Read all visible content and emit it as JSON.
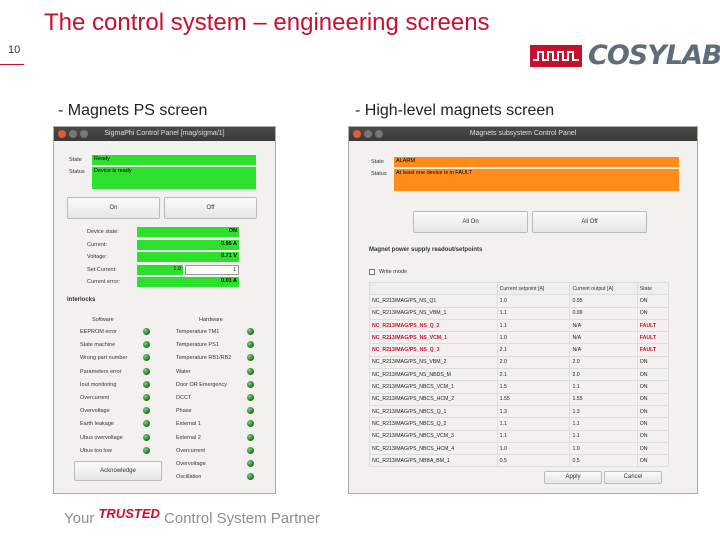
{
  "slide": {
    "number": "10",
    "title": "The control system – engineering screens",
    "logo_text": "COSYLAB",
    "footer_pre": "Your ",
    "footer_trusted": "TRUSTED",
    "footer_post": " Control System Partner"
  },
  "left": {
    "subtitle": "- Magnets PS screen",
    "window_title": "SigmaPhi Control Panel [mag/sigma/1]",
    "state_label": "State",
    "state_value": "Ready",
    "status_label": "Status",
    "status_value": "Device is ready",
    "on_label": "On",
    "off_label": "Off",
    "params": [
      {
        "label": "Device state:",
        "value": "ON"
      },
      {
        "label": "Current:",
        "value": "0.95 A"
      },
      {
        "label": "Voltage:",
        "value": "0.71 V"
      },
      {
        "label": "Set Current:",
        "value": "1"
      },
      {
        "label": "Current error:",
        "value": "0.01 A"
      }
    ],
    "set_current_spin": "1.0",
    "interlocks_label": "Interlocks",
    "software_label": "Software",
    "hardware_label": "Hardware",
    "software": [
      "EEPROM error",
      "State machine",
      "Wrong part number",
      "Parameters error",
      "Iout monitoring",
      "Overcurrent",
      "Overvoltage",
      "Earth leakage",
      "Ubus overvoltage",
      "Ubus too low"
    ],
    "hardware": [
      "Temperature TM1",
      "Temperature PS1",
      "Temperature RB1/RB2",
      "Water",
      "Door OR Emergency",
      "DCCT",
      "Phase",
      "External 1",
      "External 2",
      "Overcurrent",
      "Overvoltage",
      "Oscillation"
    ],
    "acknowledge_label": "Acknowledge"
  },
  "right": {
    "subtitle": "- High-level magnets screen",
    "window_title": "Magnets subsystem Control Panel",
    "state_label": "State",
    "state_value": "ALARM",
    "status_label": "Status",
    "status_value": "At least one device is in FAULT",
    "allon_label": "All On",
    "alloff_label": "All Off",
    "group_label": "Magnet power supply readout/setpoints",
    "write_label": "Write mode",
    "columns": [
      "",
      "Current setpoint [A]",
      "Current output [A]",
      "State"
    ],
    "rows": [
      [
        "NC_R213/MAG/PS_NS_Q1",
        "1.0",
        "0.95",
        "ON"
      ],
      [
        "NC_R213/MAG/PS_NS_VBM_1",
        "1.1",
        "0.99",
        "ON"
      ],
      [
        "NC_R213/MAG/PS_NS_Q_2",
        "1.1",
        "N/A",
        "FAULT"
      ],
      [
        "NC_R213/MAG/PS_NS_VCM_1",
        "1.0",
        "N/A",
        "FAULT"
      ],
      [
        "NC_R213/MAG/PS_NS_Q_3",
        "2.1",
        "N/A",
        "FAULT"
      ],
      [
        "NC_R213/MAG/PS_NS_VBM_2",
        "2.0",
        "2.0",
        "ON"
      ],
      [
        "NC_R213/MAG/PS_NS_NBDS_M",
        "2.1",
        "2.0",
        "ON"
      ],
      [
        "NC_R213/MAG/PS_NBCS_VCM_1",
        "1.5",
        "1.1",
        "ON"
      ],
      [
        "NC_R213/MAG/PS_NBCS_HCM_2",
        "1.55",
        "1.55",
        "ON"
      ],
      [
        "NC_R213/MAG/PS_NBCS_Q_1",
        "1.3",
        "1.3",
        "ON"
      ],
      [
        "NC_R213/MAG/PS_NBCS_Q_2",
        "1.1",
        "1.1",
        "ON"
      ],
      [
        "NC_R213/MAG/PS_NBCS_VCM_3",
        "1.1",
        "1.1",
        "ON"
      ],
      [
        "NC_R213/MAG/PS_NBCS_HCM_4",
        "1.0",
        "1.0",
        "ON"
      ],
      [
        "NC_R213/MAG/PS_NBBA_BM_1",
        "0.5",
        "0.5",
        "ON"
      ]
    ],
    "apply_label": "Apply",
    "cancel_label": "Cancel"
  },
  "colors": {
    "accent": "#c8102e",
    "ok_green": "#2ee02e",
    "alarm_orange": "#ff8c1a"
  }
}
